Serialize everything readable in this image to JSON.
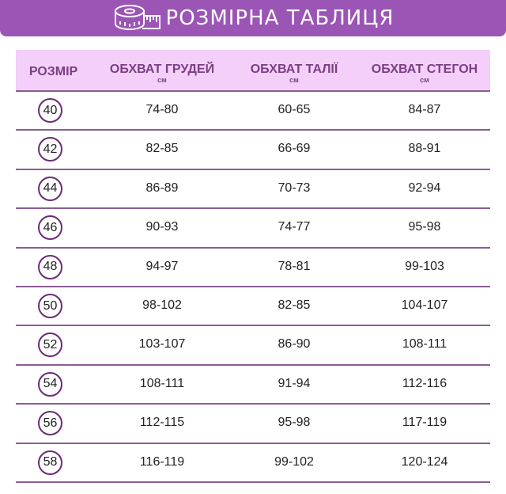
{
  "title": "РОЗМІРНА ТАБЛИЦЯ",
  "headers": [
    {
      "label": "РОЗМІР",
      "unit": ""
    },
    {
      "label": "ОБХВАТ ГРУДЕЙ",
      "unit": "см"
    },
    {
      "label": "ОБХВАТ ТАЛІЇ",
      "unit": "см"
    },
    {
      "label": "ОБХВАТ СТЕГОН",
      "unit": "см"
    }
  ],
  "rows": [
    [
      "40",
      "74-80",
      "60-65",
      "84-87"
    ],
    [
      "42",
      "82-85",
      "66-69",
      "88-91"
    ],
    [
      "44",
      "86-89",
      "70-73",
      "92-94"
    ],
    [
      "46",
      "90-93",
      "74-77",
      "95-98"
    ],
    [
      "48",
      "94-97",
      "78-81",
      "99-103"
    ],
    [
      "50",
      "98-102",
      "82-85",
      "104-107"
    ],
    [
      "52",
      "103-107",
      "86-90",
      "108-111"
    ],
    [
      "54",
      "108-111",
      "91-94",
      "112-116"
    ],
    [
      "56",
      "112-115",
      "95-98",
      "117-119"
    ],
    [
      "58",
      "116-119",
      "99-102",
      "120-124"
    ]
  ],
  "colors": {
    "banner": "#9b55b5",
    "header_bg": "#f4cffa",
    "header_text": "#7a3f82"
  }
}
